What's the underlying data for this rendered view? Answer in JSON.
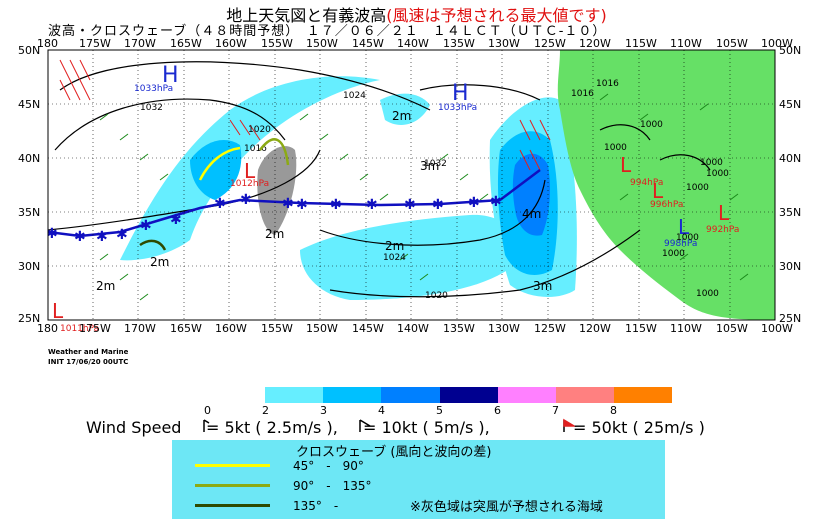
{
  "title": {
    "main": "地上天気図と有義波高",
    "note": "(風速は予想される最大値です)"
  },
  "subtitle": "波高・クロスウェーブ（４８時間予想）　１７／０６／２１　１４ＬＣＴ（ＵＴＣ-１０）",
  "map": {
    "lon_labels": [
      "180",
      "175W",
      "170W",
      "165W",
      "160W",
      "155W",
      "150W",
      "145W",
      "140W",
      "135W",
      "130W",
      "125W",
      "120W",
      "115W",
      "110W",
      "105W",
      "100W"
    ],
    "lat_labels_left": [
      "50N",
      "45N",
      "40N",
      "35N",
      "30N",
      "25N"
    ],
    "lat_labels_right": [
      "50N",
      "45N",
      "40N",
      "35N",
      "30N",
      "25N"
    ],
    "highs": [
      {
        "symbol": "H",
        "pressure": "1033hPa"
      },
      {
        "symbol": "H",
        "pressure": "1033hPa"
      }
    ],
    "lows": [
      {
        "symbol": "L",
        "pressure": "1012hPa"
      },
      {
        "symbol": "L",
        "pressure": "1011hPa"
      },
      {
        "symbol": "L",
        "pressure": "994hPa"
      },
      {
        "symbol": "L",
        "pressure": "996hPa"
      },
      {
        "symbol": "L",
        "pressure": "998hPa"
      },
      {
        "symbol": "L",
        "pressure": "992hPa"
      }
    ],
    "isobar_labels": [
      "1032",
      "1024",
      "1020",
      "1016",
      "1032",
      "1024",
      "1020",
      "1016",
      "1016",
      "1000",
      "1000",
      "1000",
      "1000",
      "1000",
      "1000",
      "1000",
      "1000"
    ],
    "wave_labels": [
      "2m",
      "2m",
      "2m",
      "3m",
      "4m",
      "2m",
      "2m",
      "3m"
    ],
    "credit_1": "Weather and Marine",
    "credit_2": "INIT 17/06/20 00UTC"
  },
  "colorbar": {
    "labels": [
      "0",
      "2",
      "3",
      "4",
      "5",
      "6",
      "7",
      "8"
    ],
    "colors": [
      "#ffffff",
      "#66eeff",
      "#00c0ff",
      "#0080ff",
      "#000090",
      "#ff80ff",
      "#ff8080",
      "#ff8000"
    ]
  },
  "wind_speed": {
    "label": "Wind Speed",
    "items": [
      "= 5kt ( 2.5m/s ),",
      "= 10kt ( 5m/s ),",
      "= 50kt ( 25m/s )"
    ]
  },
  "legend": {
    "title": "クロスウェーブ (風向と波向の差)",
    "items": [
      {
        "label": "45°　-　90°",
        "color": "#ffff00"
      },
      {
        "label": "90°　-　135°",
        "color": "#8caa14"
      },
      {
        "label": "135°　-",
        "color": "#2e4a00"
      }
    ],
    "note": "※灰色域は突風が予想される海域"
  },
  "colors": {
    "land": "#66e066",
    "sea": "#ffffff",
    "front": "#1010c0",
    "title_note": "#e01010",
    "legend_bg": "#6de7f5"
  }
}
